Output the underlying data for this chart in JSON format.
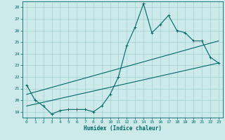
{
  "xlabel": "Humidex (Indice chaleur)",
  "bg_color": "#cceaea",
  "grid_color": "#aad4d4",
  "line_color": "#006666",
  "xlim": [
    -0.5,
    23.5
  ],
  "ylim": [
    18.5,
    28.5
  ],
  "xticks": [
    0,
    1,
    2,
    3,
    4,
    5,
    6,
    7,
    8,
    9,
    10,
    11,
    12,
    13,
    14,
    15,
    16,
    17,
    18,
    19,
    20,
    21,
    22,
    23
  ],
  "yticks": [
    19,
    20,
    21,
    22,
    23,
    24,
    25,
    26,
    27,
    28
  ],
  "main_x": [
    0,
    1,
    2,
    3,
    4,
    5,
    6,
    7,
    8,
    9,
    10,
    11,
    12,
    13,
    14,
    15,
    16,
    17,
    18,
    19,
    20,
    21,
    22,
    23
  ],
  "main_y": [
    21.3,
    20.0,
    19.5,
    18.8,
    19.1,
    19.2,
    19.2,
    19.2,
    19.0,
    19.5,
    20.5,
    22.0,
    24.7,
    26.3,
    28.3,
    25.8,
    26.5,
    27.3,
    26.0,
    25.8,
    25.1,
    25.1,
    23.7,
    23.2
  ],
  "line1_x": [
    0,
    23
  ],
  "line1_y": [
    19.5,
    23.2
  ],
  "line2_x": [
    0,
    23
  ],
  "line2_y": [
    20.5,
    25.1
  ]
}
